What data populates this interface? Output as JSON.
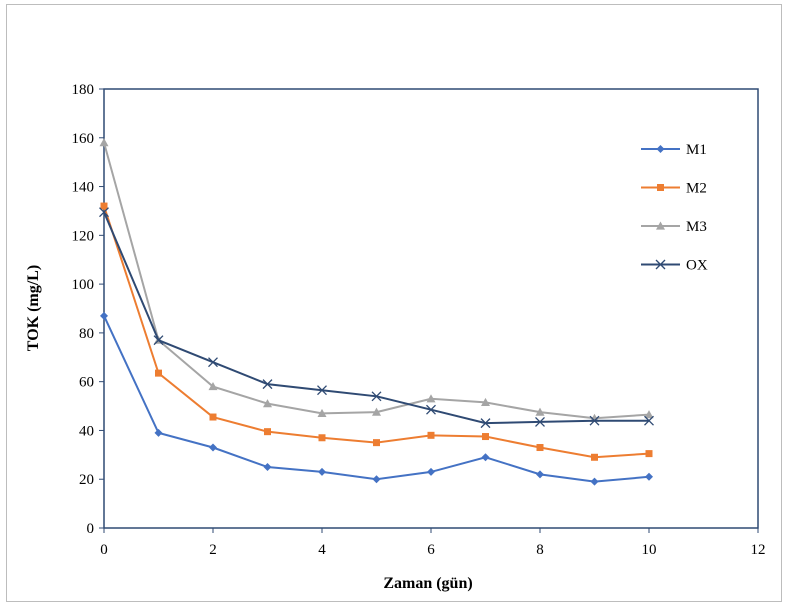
{
  "chart_data": {
    "type": "line",
    "title": "",
    "xlabel": "Zaman (gün)",
    "ylabel": "TOK (mg/L)",
    "xlim": [
      0,
      12
    ],
    "ylim": [
      0,
      180
    ],
    "xticks": [
      "0",
      "2",
      "4",
      "6",
      "8",
      "10",
      "12"
    ],
    "yticks": [
      "0",
      "20",
      "40",
      "60",
      "80",
      "100",
      "120",
      "140",
      "160",
      "180"
    ],
    "x": [
      0,
      1,
      2,
      3,
      4,
      5,
      6,
      7,
      8,
      9,
      10
    ],
    "grid": false,
    "legend_position": "right",
    "series": [
      {
        "name": "M1",
        "color": "#4472C4",
        "marker": "diamond",
        "values": [
          87,
          39,
          33,
          25,
          23,
          20,
          23,
          29,
          22,
          19,
          21
        ]
      },
      {
        "name": "M2",
        "color": "#ED7D31",
        "marker": "square",
        "values": [
          132,
          63.5,
          45.5,
          39.5,
          37,
          35,
          38,
          37.5,
          33,
          29,
          30.5
        ]
      },
      {
        "name": "M3",
        "color": "#A5A5A5",
        "marker": "triangle",
        "values": [
          158,
          77,
          58,
          51,
          47,
          47.5,
          53,
          51.5,
          47.5,
          45,
          46.5
        ]
      },
      {
        "name": "OX",
        "color": "#2F4A73",
        "marker": "x",
        "values": [
          129.5,
          77,
          68,
          59,
          56.5,
          54,
          48.5,
          43,
          43.5,
          44,
          44
        ]
      }
    ]
  }
}
